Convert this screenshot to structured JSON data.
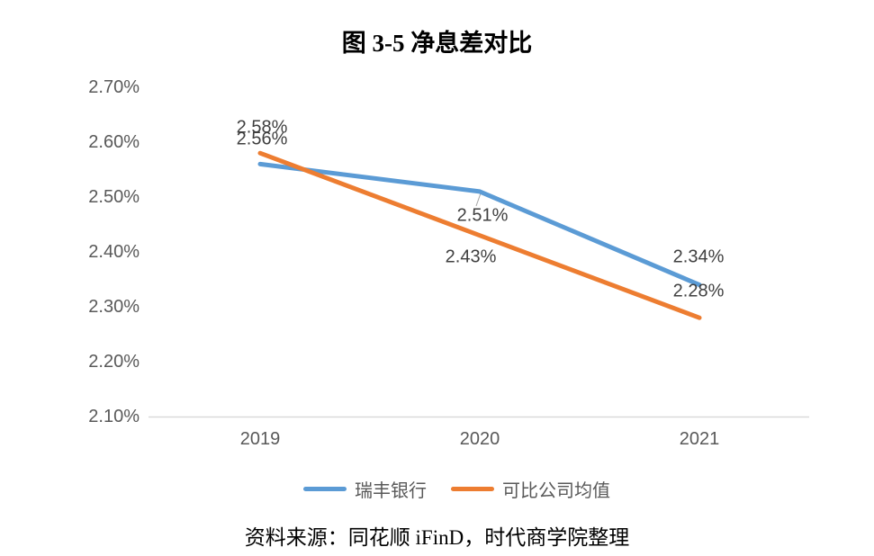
{
  "title": "图 3-5 净息差对比",
  "source_note": "资料来源：同花顺 iFinD，时代商学院整理",
  "colors": {
    "series_blue": "#5B9BD5",
    "series_orange": "#ED7D31",
    "axis_line": "#D9D9D9",
    "tick_text": "#595959",
    "data_label_text": "#404040",
    "legend_text": "#595959",
    "leader_line": "#A6A6A6",
    "background": "#FFFFFF",
    "title_text": "#000000"
  },
  "chart_data": {
    "type": "line",
    "title": "图 3-5 净息差对比",
    "categories": [
      "2019",
      "2020",
      "2021"
    ],
    "series": [
      {
        "name": "瑞丰银行",
        "color": "#5B9BD5",
        "values": [
          2.56,
          2.51,
          2.34
        ],
        "data_labels": [
          "2.56%",
          "2.51%",
          "2.34%"
        ]
      },
      {
        "name": "可比公司均值",
        "color": "#ED7D31",
        "values": [
          2.58,
          2.43,
          2.28
        ],
        "data_labels": [
          "2.58%",
          "2.43%",
          "2.28%"
        ]
      }
    ],
    "xlabel": "",
    "ylabel": "",
    "ylim": [
      2.1,
      2.7
    ],
    "ytick_values": [
      2.7,
      2.6,
      2.5,
      2.4,
      2.3,
      2.2,
      2.1
    ],
    "ytick_labels": [
      "2.70%",
      "2.60%",
      "2.50%",
      "2.40%",
      "2.30%",
      "2.20%",
      "2.10%"
    ],
    "grid": "baseline-only",
    "legend_position": "bottom",
    "line_width": 5
  }
}
